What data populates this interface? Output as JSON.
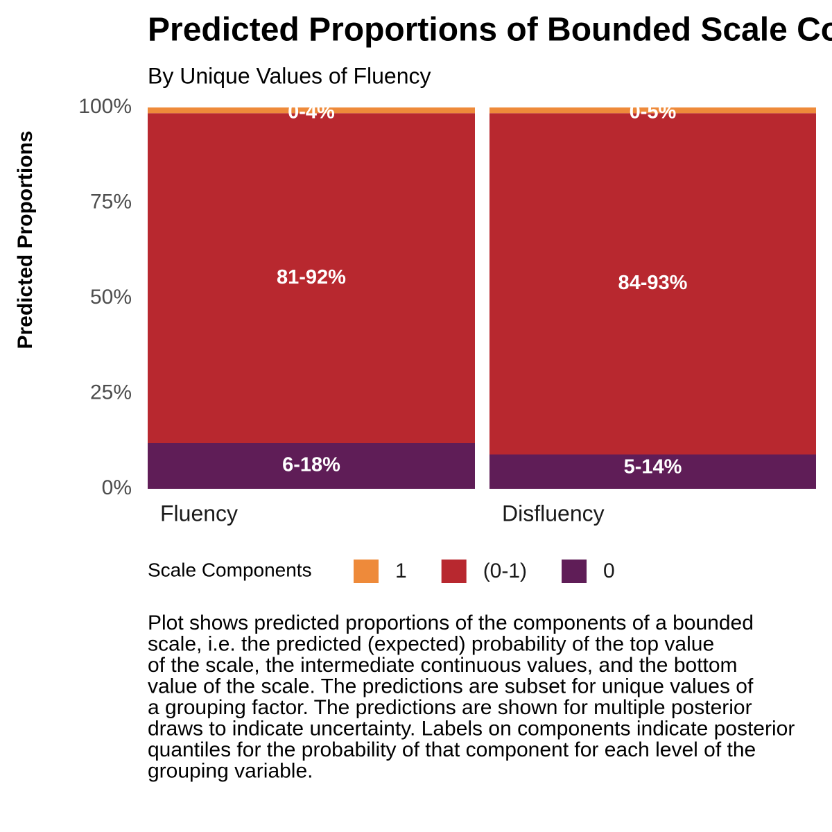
{
  "chart_data": {
    "type": "stacked_bar",
    "title": "Predicted Proportions of Bounded Scale Components",
    "subtitle": "By Unique Values of Fluency",
    "ylabel": "Predicted Proportions",
    "categories": [
      "Fluency",
      "Disfluency"
    ],
    "series": [
      {
        "name": "1",
        "color": "#ee8a3a",
        "values": [
          1.5,
          1.5
        ],
        "range_labels": [
          "0-4%",
          "0-5%"
        ]
      },
      {
        "name": "(0-1)",
        "color": "#b8282f",
        "values": [
          86.5,
          89.5
        ],
        "range_labels": [
          "81-92%",
          "84-93%"
        ]
      },
      {
        "name": "0",
        "color": "#5f1d57",
        "values": [
          12,
          9
        ],
        "range_labels": [
          "6-18%",
          "5-14%"
        ]
      }
    ],
    "ylim": [
      0,
      100
    ],
    "yticks": [
      {
        "value": 0,
        "label": "0%"
      },
      {
        "value": 25,
        "label": "25%"
      },
      {
        "value": 50,
        "label": "50%"
      },
      {
        "value": 75,
        "label": "75%"
      },
      {
        "value": 100,
        "label": "100%"
      }
    ],
    "legend_title": "Scale Components",
    "caption": [
      "Plot shows predicted proportions of the components of a bounded",
      "scale, i.e. the predicted (expected) probability of the top value",
      "of the scale, the intermediate continuous values, and the bottom",
      "value of the scale. The predictions are subset for unique values of",
      "a grouping factor. The predictions are shown for multiple posterior",
      "draws to indicate uncertainty. Labels on components indicate posterior",
      "quantiles for the probability of that component for each level of the",
      "grouping variable."
    ]
  }
}
